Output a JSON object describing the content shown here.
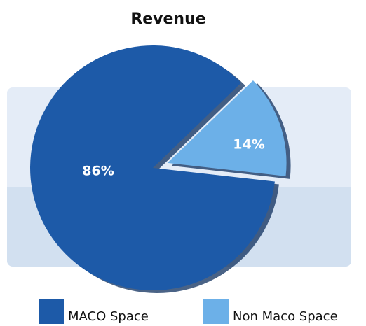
{
  "chart_data": {
    "type": "pie",
    "title": "Revenue",
    "categories": [
      "MACO Space",
      "Non Maco Space"
    ],
    "values": [
      86,
      14
    ],
    "value_labels": [
      "86%",
      "14%"
    ],
    "colors": [
      "#1d5aa8",
      "#6cb0e8"
    ]
  }
}
